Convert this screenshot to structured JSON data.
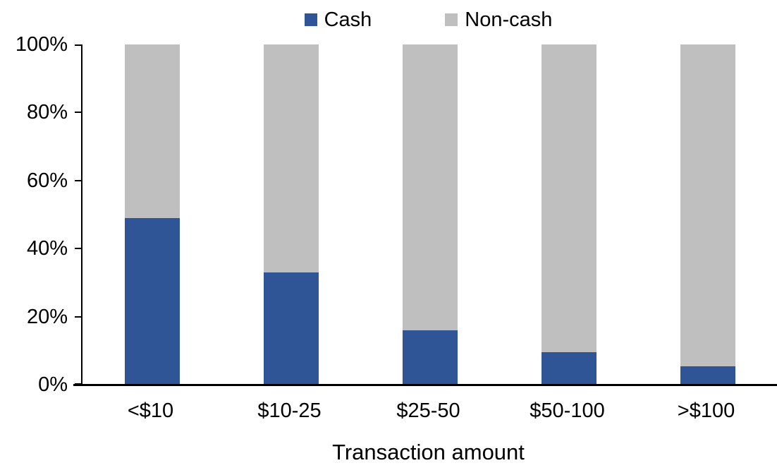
{
  "chart_data": {
    "type": "bar",
    "stacked": true,
    "percent_stacked": true,
    "title": "",
    "xlabel": "Transaction amount",
    "ylabel": "",
    "categories": [
      "<$10",
      "$10-25",
      "$25-50",
      "$50-100",
      ">$100"
    ],
    "series": [
      {
        "name": "Cash",
        "color": "#2F5597",
        "values": [
          49,
          33,
          16,
          9.5,
          5.5
        ]
      },
      {
        "name": "Non-cash",
        "color": "#BFBFBF",
        "values": [
          51,
          67,
          84,
          90.5,
          94.5
        ]
      }
    ],
    "ylim": [
      0,
      100
    ],
    "y_ticks": [
      {
        "value": 0,
        "label": "0%"
      },
      {
        "value": 20,
        "label": "20%"
      },
      {
        "value": 40,
        "label": "40%"
      },
      {
        "value": 60,
        "label": "60%"
      },
      {
        "value": 80,
        "label": "80%"
      },
      {
        "value": 100,
        "label": "100%"
      }
    ],
    "grid": false,
    "legend_position": "top",
    "axis_color": "#000000",
    "background_color": "#FFFFFF"
  }
}
